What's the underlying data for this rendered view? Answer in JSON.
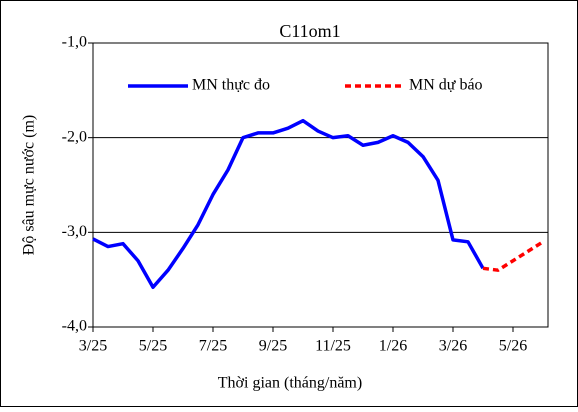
{
  "chart_data": {
    "type": "line",
    "title": "C11om1",
    "x_label": "Thời gian  (tháng/năm)",
    "y_label": "Độ sâu mực nước (m)",
    "categories": [
      "3/25",
      null,
      null,
      null,
      "5/25",
      null,
      null,
      null,
      "7/25",
      null,
      null,
      null,
      "9/25",
      null,
      null,
      null,
      "11/25",
      null,
      null,
      null,
      "1/26",
      null,
      null,
      null,
      "3/26",
      null,
      null,
      null,
      "5/26",
      null,
      null
    ],
    "series": [
      {
        "name": "MN thực đo",
        "color": "#0000ff",
        "dashed": false,
        "values": [
          -3.07,
          -3.15,
          -3.12,
          -3.3,
          -3.58,
          -3.4,
          -3.17,
          -2.92,
          -2.6,
          -2.34,
          -2.0,
          -1.95,
          -1.95,
          -1.9,
          -1.82,
          -1.93,
          -2.0,
          -1.98,
          -2.08,
          -2.05,
          -1.98,
          -2.05,
          -2.2,
          -2.45,
          -3.08,
          -3.1,
          -3.38,
          null,
          null,
          null,
          null
        ]
      },
      {
        "name": "MN dự báo",
        "color": "#ff0000",
        "dashed": true,
        "values": [
          null,
          null,
          null,
          null,
          null,
          null,
          null,
          null,
          null,
          null,
          null,
          null,
          null,
          null,
          null,
          null,
          null,
          null,
          null,
          null,
          null,
          null,
          null,
          null,
          null,
          null,
          -3.38,
          -3.4,
          -3.3,
          -3.2,
          -3.1
        ]
      }
    ],
    "ylim": [
      -4,
      -1
    ],
    "yticks": [
      {
        "value": -1,
        "label": "-1,0"
      },
      {
        "value": -2,
        "label": "-2,0"
      },
      {
        "value": -3,
        "label": "-3,0"
      },
      {
        "value": -4,
        "label": "-4,0"
      }
    ],
    "grid": true
  }
}
